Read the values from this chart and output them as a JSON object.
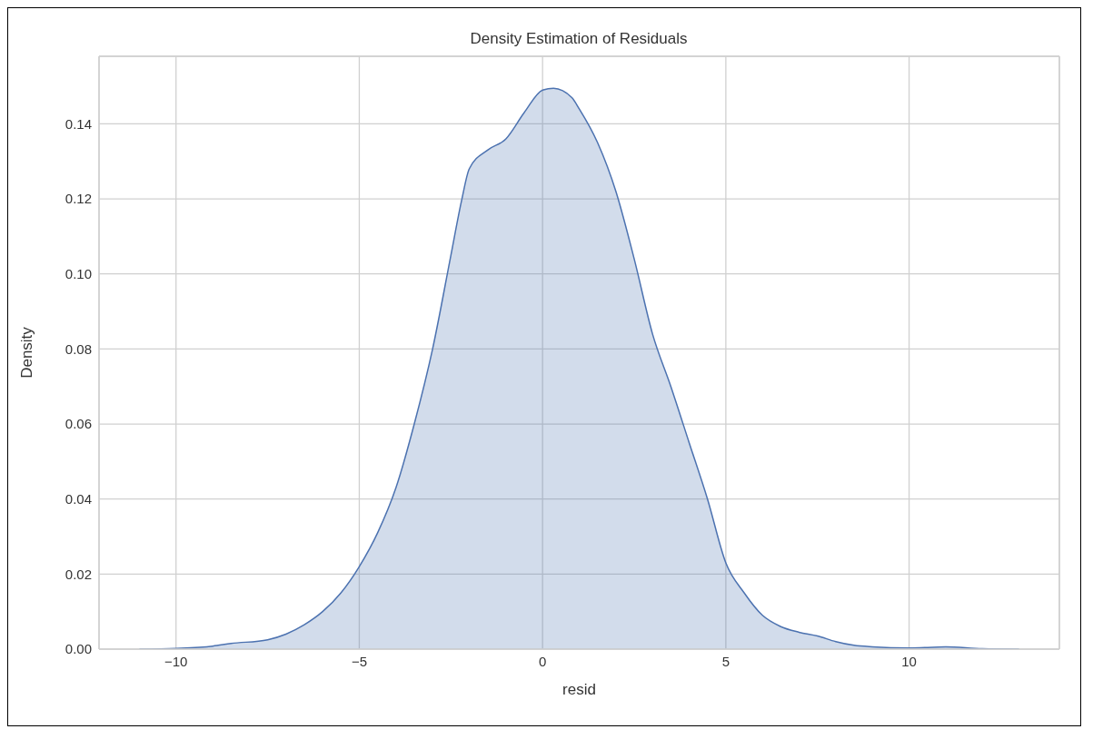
{
  "chart_data": {
    "type": "area",
    "title": "Density Estimation of Residuals",
    "xlabel": "resid",
    "ylabel": "Density",
    "x": [
      -11,
      -10,
      -9,
      -8.5,
      -7.5,
      -7,
      -6.5,
      -6,
      -5.5,
      -5,
      -4.5,
      -4,
      -3.5,
      -3,
      -2.5,
      -2.2,
      -2,
      -1.5,
      -1,
      -0.5,
      0,
      0.3,
      0.8,
      1,
      1.5,
      2,
      2.5,
      3,
      3.5,
      4,
      4.5,
      5,
      5.5,
      6,
      6.5,
      7,
      7.5,
      8,
      8.5,
      9,
      10,
      11,
      12,
      13
    ],
    "series": [
      {
        "color": "#4c72b0",
        "values": [
          0,
          0.0002,
          0.0008,
          0.0015,
          0.0025,
          0.004,
          0.0065,
          0.01,
          0.015,
          0.022,
          0.031,
          0.043,
          0.06,
          0.08,
          0.105,
          0.12,
          0.128,
          0.133,
          0.136,
          0.143,
          0.149,
          0.1495,
          0.147,
          0.144,
          0.135,
          0.122,
          0.104,
          0.084,
          0.07,
          0.055,
          0.04,
          0.023,
          0.015,
          0.009,
          0.006,
          0.0045,
          0.0035,
          0.002,
          0.001,
          0.0006,
          0.0003,
          0.0006,
          0.0001,
          0
        ]
      }
    ],
    "xlim": [
      -12.1,
      14.1
    ],
    "xticks": [
      {
        "value": -10,
        "label": "−10"
      },
      {
        "value": -5,
        "label": "−5"
      },
      0,
      5,
      10
    ],
    "ylim": [
      0,
      0.158
    ],
    "yticks": [
      {
        "value": 0,
        "label": "0.00"
      },
      {
        "value": 0.02,
        "label": "0.02"
      },
      {
        "value": 0.04,
        "label": "0.04"
      },
      {
        "value": 0.06,
        "label": "0.06"
      },
      {
        "value": 0.08,
        "label": "0.08"
      },
      {
        "value": 0.1,
        "label": "0.10"
      },
      {
        "value": 0.12,
        "label": "0.12"
      },
      {
        "value": 0.14,
        "label": "0.14"
      }
    ],
    "grid": true,
    "line_style": "solid",
    "marker": "none"
  }
}
